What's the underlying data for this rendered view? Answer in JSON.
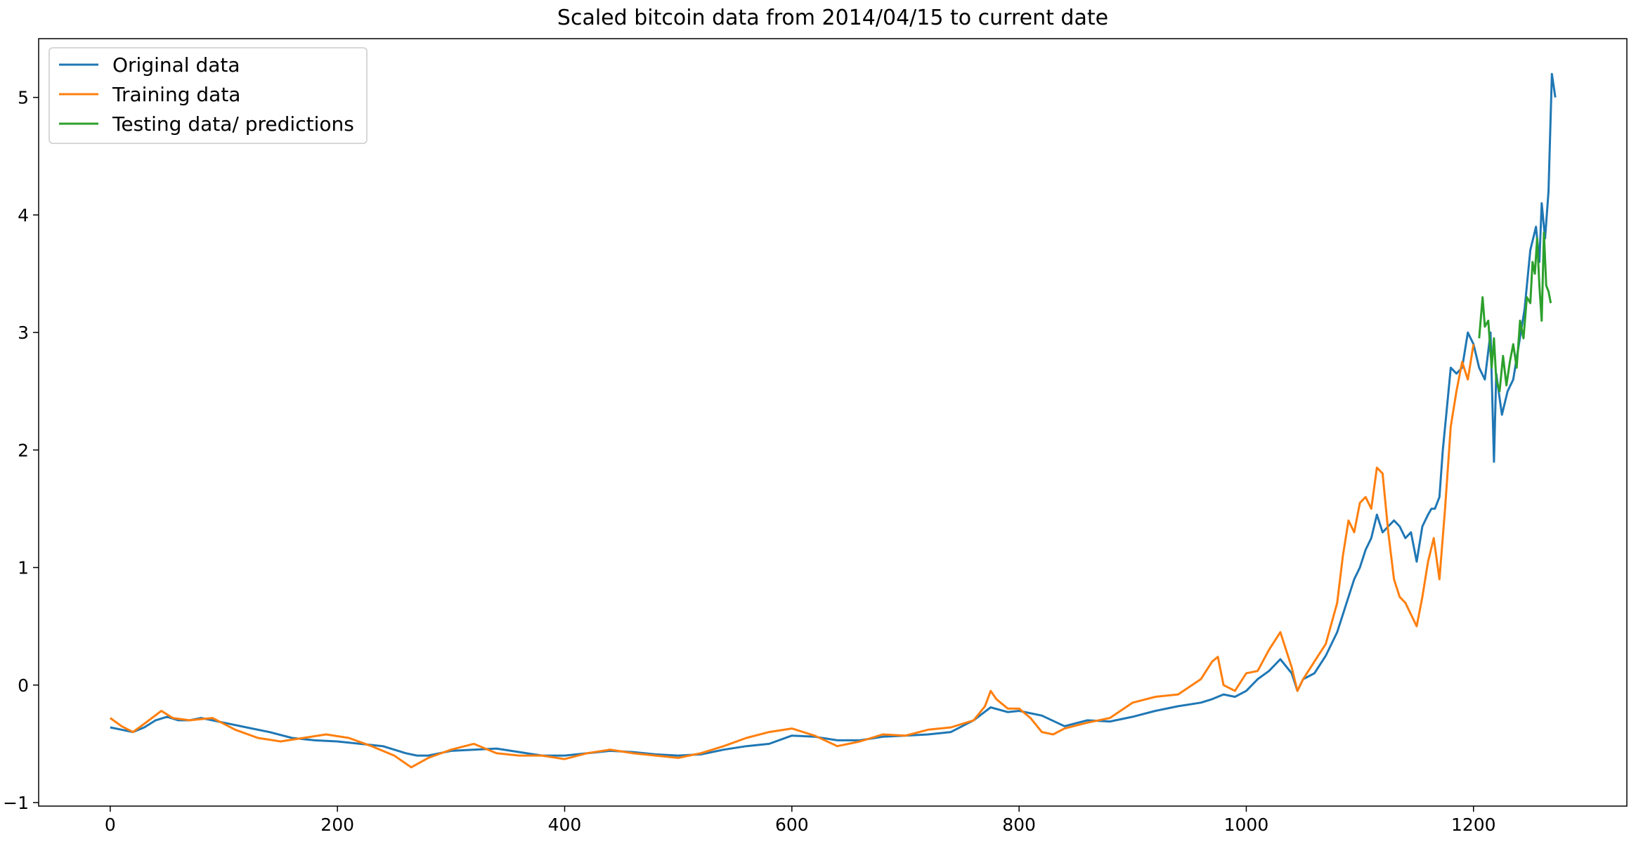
{
  "chart_data": {
    "type": "line",
    "title": "Scaled bitcoin data from 2014/04/15 to current date",
    "xlabel": "",
    "ylabel": "",
    "xlim": [
      -63,
      1335
    ],
    "ylim": [
      -1.03,
      5.5
    ],
    "xticks": [
      0,
      200,
      400,
      600,
      800,
      1000,
      1200
    ],
    "yticks": [
      -1,
      0,
      1,
      2,
      3,
      4,
      5
    ],
    "xtick_labels": [
      "0",
      "200",
      "400",
      "600",
      "800",
      "1000",
      "1200"
    ],
    "ytick_labels": [
      "−1",
      "0",
      "1",
      "2",
      "3",
      "4",
      "5"
    ],
    "grid": false,
    "legend_position": "top-left",
    "series": [
      {
        "name": "Original data",
        "color": "#1f77b4",
        "x": [
          0,
          10,
          20,
          30,
          40,
          50,
          60,
          70,
          80,
          100,
          120,
          140,
          160,
          180,
          200,
          220,
          240,
          260,
          270,
          280,
          300,
          320,
          340,
          360,
          380,
          400,
          420,
          440,
          460,
          480,
          500,
          520,
          540,
          560,
          580,
          600,
          620,
          640,
          660,
          680,
          700,
          720,
          740,
          760,
          775,
          790,
          800,
          820,
          840,
          860,
          880,
          900,
          920,
          940,
          960,
          970,
          980,
          990,
          1000,
          1010,
          1020,
          1030,
          1040,
          1045,
          1050,
          1060,
          1070,
          1080,
          1090,
          1095,
          1100,
          1105,
          1110,
          1115,
          1120,
          1125,
          1130,
          1135,
          1140,
          1145,
          1150,
          1155,
          1160,
          1163,
          1166,
          1170,
          1173,
          1176,
          1180,
          1185,
          1190,
          1195,
          1200,
          1205,
          1210,
          1215,
          1218,
          1220,
          1225,
          1230,
          1235,
          1240,
          1245,
          1250,
          1255,
          1258,
          1260,
          1263,
          1266,
          1269,
          1272
        ],
        "y": [
          -0.36,
          -0.38,
          -0.4,
          -0.36,
          -0.3,
          -0.27,
          -0.3,
          -0.3,
          -0.28,
          -0.32,
          -0.36,
          -0.4,
          -0.45,
          -0.47,
          -0.48,
          -0.5,
          -0.52,
          -0.58,
          -0.6,
          -0.6,
          -0.56,
          -0.55,
          -0.54,
          -0.57,
          -0.6,
          -0.6,
          -0.58,
          -0.56,
          -0.57,
          -0.59,
          -0.6,
          -0.59,
          -0.55,
          -0.52,
          -0.5,
          -0.43,
          -0.44,
          -0.47,
          -0.47,
          -0.44,
          -0.43,
          -0.42,
          -0.4,
          -0.3,
          -0.19,
          -0.23,
          -0.22,
          -0.26,
          -0.35,
          -0.3,
          -0.31,
          -0.27,
          -0.22,
          -0.18,
          -0.15,
          -0.12,
          -0.08,
          -0.1,
          -0.05,
          0.05,
          0.12,
          0.22,
          0.1,
          -0.05,
          0.05,
          0.1,
          0.25,
          0.45,
          0.75,
          0.9,
          1.0,
          1.15,
          1.25,
          1.45,
          1.3,
          1.35,
          1.4,
          1.35,
          1.25,
          1.3,
          1.05,
          1.35,
          1.45,
          1.5,
          1.5,
          1.6,
          2.0,
          2.3,
          2.7,
          2.65,
          2.7,
          3.0,
          2.9,
          2.7,
          2.6,
          3.0,
          1.9,
          2.65,
          2.3,
          2.5,
          2.6,
          2.9,
          3.2,
          3.7,
          3.9,
          3.6,
          4.1,
          3.8,
          4.2,
          5.2,
          5.0
        ]
      },
      {
        "name": "Training data",
        "color": "#ff7f0e",
        "x": [
          0,
          10,
          20,
          30,
          45,
          55,
          70,
          90,
          110,
          130,
          150,
          170,
          190,
          210,
          230,
          250,
          265,
          280,
          300,
          320,
          340,
          360,
          380,
          400,
          420,
          440,
          460,
          480,
          500,
          520,
          540,
          560,
          580,
          600,
          620,
          640,
          660,
          680,
          700,
          720,
          740,
          760,
          770,
          775,
          780,
          790,
          800,
          810,
          820,
          830,
          840,
          860,
          880,
          900,
          920,
          940,
          960,
          970,
          975,
          980,
          990,
          1000,
          1010,
          1020,
          1030,
          1040,
          1045,
          1050,
          1060,
          1070,
          1080,
          1085,
          1090,
          1095,
          1100,
          1105,
          1110,
          1115,
          1120,
          1125,
          1130,
          1135,
          1140,
          1145,
          1150,
          1155,
          1160,
          1165,
          1170,
          1175,
          1180,
          1185,
          1190,
          1195,
          1200
        ],
        "y": [
          -0.28,
          -0.35,
          -0.4,
          -0.33,
          -0.22,
          -0.28,
          -0.3,
          -0.28,
          -0.38,
          -0.45,
          -0.48,
          -0.45,
          -0.42,
          -0.45,
          -0.52,
          -0.6,
          -0.7,
          -0.62,
          -0.55,
          -0.5,
          -0.58,
          -0.6,
          -0.6,
          -0.63,
          -0.58,
          -0.55,
          -0.58,
          -0.6,
          -0.62,
          -0.58,
          -0.52,
          -0.45,
          -0.4,
          -0.37,
          -0.43,
          -0.52,
          -0.48,
          -0.42,
          -0.43,
          -0.38,
          -0.36,
          -0.3,
          -0.18,
          -0.05,
          -0.12,
          -0.2,
          -0.2,
          -0.28,
          -0.4,
          -0.42,
          -0.37,
          -0.32,
          -0.28,
          -0.15,
          -0.1,
          -0.08,
          0.05,
          0.2,
          0.24,
          0.0,
          -0.05,
          0.1,
          0.12,
          0.3,
          0.45,
          0.15,
          -0.05,
          0.05,
          0.2,
          0.35,
          0.7,
          1.1,
          1.4,
          1.3,
          1.55,
          1.6,
          1.5,
          1.85,
          1.8,
          1.3,
          0.9,
          0.75,
          0.7,
          0.6,
          0.5,
          0.75,
          1.05,
          1.25,
          0.9,
          1.5,
          2.2,
          2.5,
          2.75,
          2.6,
          2.9
        ]
      },
      {
        "name": "Testing data/ predictions",
        "color": "#2ca02c",
        "x": [
          1205,
          1208,
          1210,
          1213,
          1216,
          1218,
          1220,
          1223,
          1226,
          1229,
          1232,
          1235,
          1238,
          1241,
          1244,
          1247,
          1250,
          1252,
          1254,
          1256,
          1258,
          1260,
          1262,
          1264,
          1266,
          1268
        ],
        "y": [
          2.95,
          3.3,
          3.05,
          3.1,
          2.7,
          2.95,
          2.6,
          2.5,
          2.8,
          2.55,
          2.75,
          2.9,
          2.7,
          3.1,
          2.95,
          3.3,
          3.25,
          3.6,
          3.5,
          3.8,
          3.4,
          3.1,
          3.85,
          3.4,
          3.35,
          3.25
        ]
      }
    ]
  }
}
